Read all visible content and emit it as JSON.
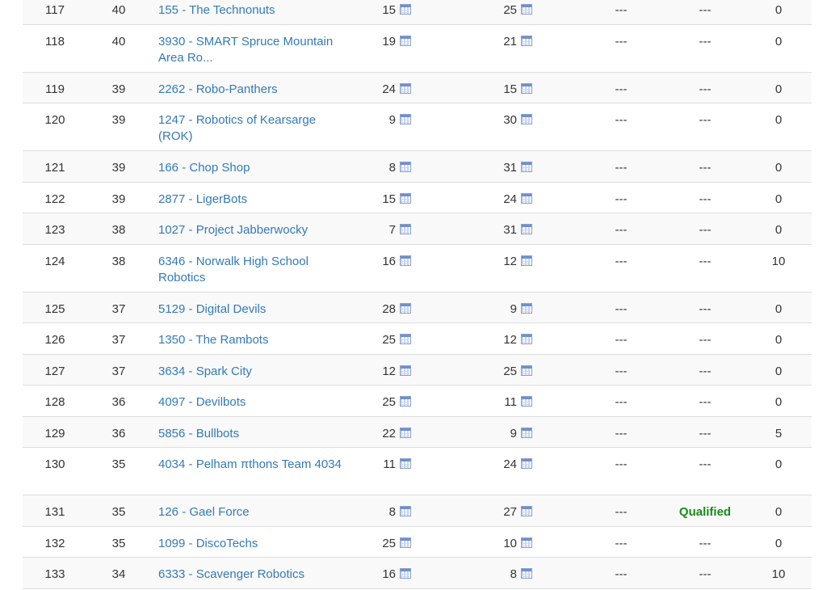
{
  "rows": [
    {
      "rank": "117",
      "score": "40",
      "team": "155 - The Technonuts",
      "value1": "15",
      "value2": "25",
      "col5": "---",
      "col6": "---",
      "col7": "0"
    },
    {
      "rank": "118",
      "score": "40",
      "team": "3930 - SMART Spruce Mountain Area Ro...",
      "value1": "19",
      "value2": "21",
      "col5": "---",
      "col6": "---",
      "col7": "0"
    },
    {
      "rank": "119",
      "score": "39",
      "team": "2262 - Robo-Panthers",
      "value1": "24",
      "value2": "15",
      "col5": "---",
      "col6": "---",
      "col7": "0"
    },
    {
      "rank": "120",
      "score": "39",
      "team": "1247 - Robotics of Kearsarge (ROK)",
      "value1": "9",
      "value2": "30",
      "col5": "---",
      "col6": "---",
      "col7": "0"
    },
    {
      "rank": "121",
      "score": "39",
      "team": "166 - Chop Shop",
      "value1": "8",
      "value2": "31",
      "col5": "---",
      "col6": "---",
      "col7": "0"
    },
    {
      "rank": "122",
      "score": "39",
      "team": "2877 - LigerBots",
      "value1": "15",
      "value2": "24",
      "col5": "---",
      "col6": "---",
      "col7": "0"
    },
    {
      "rank": "123",
      "score": "38",
      "team": "1027 - Project Jabberwocky",
      "value1": "7",
      "value2": "31",
      "col5": "---",
      "col6": "---",
      "col7": "0"
    },
    {
      "rank": "124",
      "score": "38",
      "team": "6346 - Norwalk High School Robotics",
      "value1": "16",
      "value2": "12",
      "col5": "---",
      "col6": "---",
      "col7": "10"
    },
    {
      "rank": "125",
      "score": "37",
      "team": "5129 - Digital Devils",
      "value1": "28",
      "value2": "9",
      "col5": "---",
      "col6": "---",
      "col7": "0"
    },
    {
      "rank": "126",
      "score": "37",
      "team": "1350 - The Rambots",
      "value1": "25",
      "value2": "12",
      "col5": "---",
      "col6": "---",
      "col7": "0"
    },
    {
      "rank": "127",
      "score": "37",
      "team": "3634 - Spark City",
      "value1": "12",
      "value2": "25",
      "col5": "---",
      "col6": "---",
      "col7": "0"
    },
    {
      "rank": "128",
      "score": "36",
      "team": "4097 - Devilbots",
      "value1": "25",
      "value2": "11",
      "col5": "---",
      "col6": "---",
      "col7": "0"
    },
    {
      "rank": "129",
      "score": "36",
      "team": "5856 - Bullbots",
      "value1": "22",
      "value2": "9",
      "col5": "---",
      "col6": "---",
      "col7": "5"
    },
    {
      "rank": "130",
      "score": "35",
      "team": "4034 - Pelham πthons Team 4034",
      "value1": "11",
      "value2": "24",
      "col5": "---",
      "col6": "---",
      "col7": "0"
    },
    {
      "rank": "131",
      "score": "35",
      "team": "126 - Gael Force",
      "value1": "8",
      "value2": "27",
      "col5": "---",
      "col6": "Qualified",
      "col7": "0"
    },
    {
      "rank": "132",
      "score": "35",
      "team": "1099 - DiscoTechs",
      "value1": "25",
      "value2": "10",
      "col5": "---",
      "col6": "---",
      "col7": "0"
    },
    {
      "rank": "133",
      "score": "34",
      "team": "6333 - Scavenger Robotics",
      "value1": "16",
      "value2": "8",
      "col5": "---",
      "col6": "---",
      "col7": "10"
    }
  ],
  "icons": {
    "calendar": "calendar-icon"
  },
  "colors": {
    "link": "#337ab7",
    "qualified": "#1a8a1a",
    "stripe": "#f9f9f9",
    "border": "#dddddd"
  }
}
